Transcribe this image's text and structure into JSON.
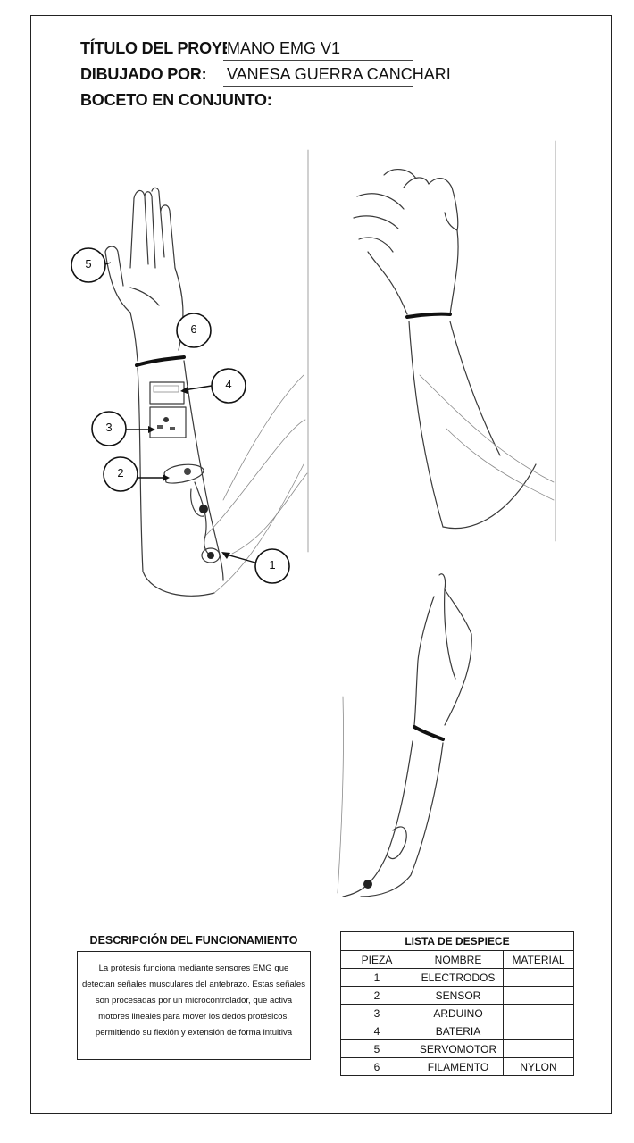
{
  "header": {
    "title_label": "TÍTULO DEL PROYE",
    "title_value": "MANO EMG V1",
    "drawn_by_label": "DIBUJADO POR:",
    "drawn_by_value": "VANESA GUERRA CANCHARI",
    "sketch_label": "BOCETO EN CONJUNTO:"
  },
  "callouts": [
    {
      "number": "1"
    },
    {
      "number": "2"
    },
    {
      "number": "3"
    },
    {
      "number": "4"
    },
    {
      "number": "5"
    },
    {
      "number": "6"
    }
  ],
  "description": {
    "title": "DESCRIPCIÓN DEL FUNCIONAMIENTO",
    "text": "La prótesis funciona mediante sensores EMG que detectan señales musculares del antebrazo. Estas señales son procesadas por un microcontrolador, que activa motores lineales para mover los dedos protésicos, permitiendo su flexión y extensión de forma intuitiva"
  },
  "parts_list": {
    "title": "LISTA DE DESPIECE",
    "columns": [
      "PIEZA",
      "NOMBRE",
      "MATERIAL"
    ],
    "rows": [
      [
        "1",
        "ELECTRODOS",
        ""
      ],
      [
        "2",
        "SENSOR",
        ""
      ],
      [
        "3",
        "ARDUINO",
        ""
      ],
      [
        "4",
        "BATERIA",
        ""
      ],
      [
        "5",
        "SERVOMOTOR",
        ""
      ],
      [
        "6",
        "FILAMENTO",
        "NYLON"
      ]
    ]
  }
}
